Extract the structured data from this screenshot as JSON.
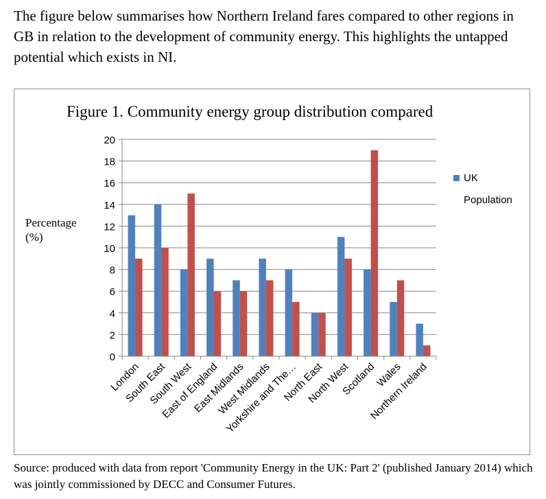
{
  "intro_text": "The figure below summarises how Northern Ireland fares compared to other regions in GB in relation to the development of community energy.  This highlights the untapped potential which exists in NI.",
  "source_text": "Source: produced with data from report 'Community Energy in the UK: Part 2' (published January 2014) which was jointly commissioned by DECC and Consumer Futures.",
  "chart_data": {
    "type": "bar",
    "title": "Figure 1. Community energy group distribution compared",
    "ylabel_line1": "Percentage",
    "ylabel_line2": "(%)",
    "xlabel": "",
    "ylim": [
      0,
      20
    ],
    "yticks": [
      0,
      2,
      4,
      6,
      8,
      10,
      12,
      14,
      16,
      18,
      20
    ],
    "grid": true,
    "legend_position": "right",
    "categories": [
      "London",
      "South East",
      "South West",
      "East of England",
      "East Midlands",
      "West Midlands",
      "Yorkshire and The…",
      "North East",
      "North West",
      "Scotland",
      "Wales",
      "Northern Ireland"
    ],
    "series": [
      {
        "name": "UK",
        "color": "#4f81bd",
        "values": [
          13,
          14,
          8,
          9,
          7,
          9,
          8,
          4,
          11,
          8,
          5,
          3
        ]
      },
      {
        "name": "Population",
        "color": "#c0504d",
        "values": [
          9,
          10,
          15,
          6,
          6,
          7,
          5,
          4,
          9,
          19,
          7,
          1
        ]
      }
    ]
  }
}
